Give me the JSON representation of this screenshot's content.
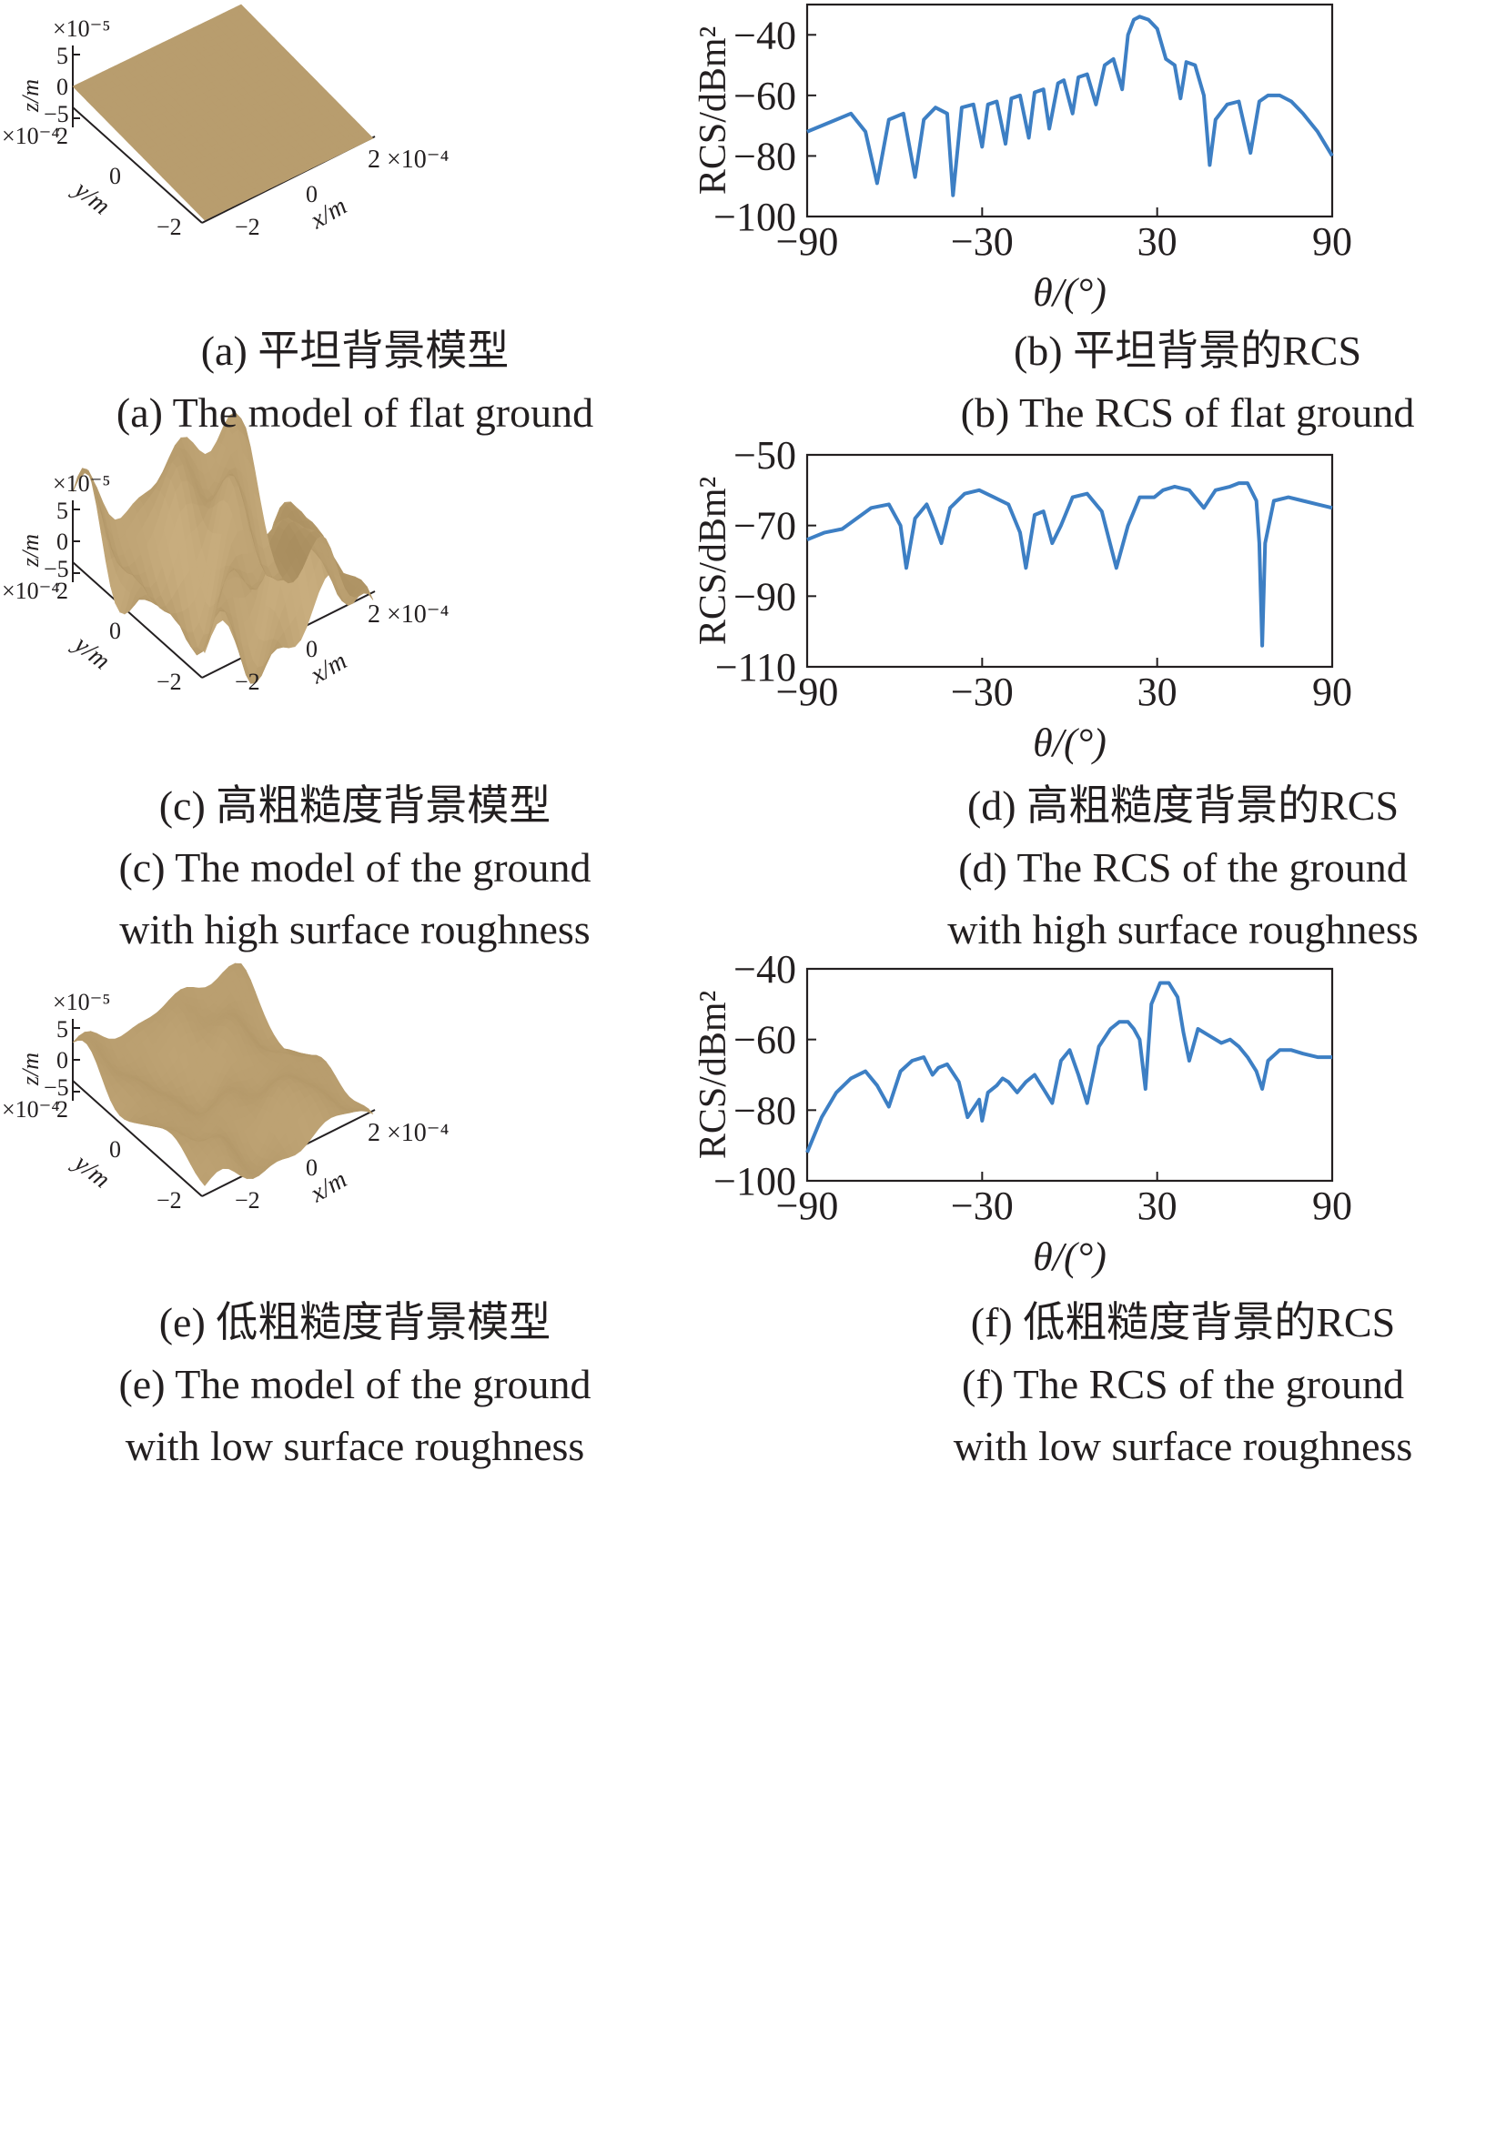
{
  "colors": {
    "surface": "#b89d6e",
    "surface_dark": "#9c8156",
    "line": "#3d7fc4",
    "axis": "#231f20"
  },
  "surface_panels": [
    {
      "id": "a",
      "roughness": 0.0,
      "z_exp": "×10⁻⁵",
      "z_label": "z/m",
      "y_exp": "×10⁻⁴",
      "y_label": "y/m",
      "x_exp": "2 ×10⁻⁴",
      "x_label": "x/m",
      "z_ticks": [
        "5",
        "0",
        "−5"
      ],
      "y_ticks": [
        "2",
        "0",
        "−2"
      ],
      "x_ticks": [
        "−2",
        "0"
      ]
    },
    {
      "id": "c",
      "roughness": 1.0,
      "z_exp": "×10⁻⁵",
      "z_label": "z/m",
      "y_exp": "×10⁻⁴",
      "y_label": "y/m",
      "x_exp": "2 ×10⁻⁴",
      "x_label": "x/m",
      "z_ticks": [
        "5",
        "0",
        "−5"
      ],
      "y_ticks": [
        "2",
        "0",
        "−2"
      ],
      "x_ticks": [
        "−2",
        "0"
      ]
    },
    {
      "id": "e",
      "roughness": 0.35,
      "z_exp": "×10⁻⁵",
      "z_label": "z/m",
      "y_exp": "×10⁻⁴",
      "y_label": "y/m",
      "x_exp": "2 ×10⁻⁴",
      "x_label": "x/m",
      "z_ticks": [
        "5",
        "0",
        "−5"
      ],
      "y_ticks": [
        "2",
        "0",
        "−2"
      ],
      "x_ticks": [
        "−2",
        "0"
      ]
    }
  ],
  "chart_data": [
    {
      "type": "line",
      "xlabel": "θ/(°)",
      "ylabel": "RCS/dBm²",
      "xlim": [
        -90,
        90
      ],
      "ylim": [
        -100,
        -30
      ],
      "xticks": [
        "−90",
        "−30",
        "30",
        "90"
      ],
      "xtick_values": [
        -90,
        -30,
        30,
        90
      ],
      "yticks": [
        "−40",
        "−60",
        "−80",
        "−100"
      ],
      "ytick_values": [
        -40,
        -60,
        -80,
        -100
      ],
      "x": [
        -90,
        -80,
        -75,
        -70,
        -66,
        -62,
        -57,
        -53,
        -50,
        -46,
        -42,
        -40,
        -37,
        -33,
        -30,
        -28,
        -25,
        -22,
        -20,
        -17,
        -14,
        -12,
        -9,
        -7,
        -4,
        -2,
        1,
        3,
        6,
        9,
        12,
        15,
        18,
        20,
        22,
        24,
        27,
        30,
        33,
        36,
        38,
        40,
        43,
        46,
        48,
        50,
        54,
        58,
        62,
        65,
        68,
        72,
        76,
        80,
        85,
        90
      ],
      "y": [
        -72,
        -68,
        -66,
        -72,
        -89,
        -68,
        -66,
        -87,
        -68,
        -64,
        -66,
        -93,
        -64,
        -63,
        -77,
        -63,
        -62,
        -76,
        -61,
        -60,
        -74,
        -59,
        -58,
        -71,
        -56,
        -55,
        -66,
        -54,
        -53,
        -63,
        -50,
        -48,
        -58,
        -40,
        -35,
        -34,
        -35,
        -38,
        -48,
        -50,
        -61,
        -49,
        -50,
        -60,
        -83,
        -68,
        -63,
        -62,
        -79,
        -62,
        -60,
        -60,
        -62,
        -66,
        -72,
        -80
      ]
    },
    {
      "type": "line",
      "xlabel": "θ/(°)",
      "ylabel": "RCS/dBm²",
      "xlim": [
        -90,
        90
      ],
      "ylim": [
        -110,
        -50
      ],
      "xticks": [
        "−90",
        "−30",
        "30",
        "90"
      ],
      "xtick_values": [
        -90,
        -30,
        30,
        90
      ],
      "yticks": [
        "−50",
        "−70",
        "−90",
        "−110"
      ],
      "ytick_values": [
        -50,
        -70,
        -90,
        -110
      ],
      "x": [
        -90,
        -84,
        -78,
        -73,
        -68,
        -62,
        -58,
        -56,
        -53,
        -49,
        -47,
        -44,
        -41,
        -36,
        -31,
        -26,
        -21,
        -17,
        -15,
        -12,
        -9,
        -6,
        -3,
        1,
        6,
        11,
        16,
        20,
        24,
        26,
        29,
        32,
        36,
        41,
        46,
        50,
        55,
        58,
        61,
        64,
        65,
        66,
        67,
        70,
        75,
        80,
        85,
        90
      ],
      "y": [
        -74,
        -72,
        -71,
        -68,
        -65,
        -64,
        -70,
        -82,
        -68,
        -64,
        -68,
        -75,
        -65,
        -61,
        -60,
        -62,
        -64,
        -72,
        -82,
        -67,
        -66,
        -75,
        -70,
        -62,
        -61,
        -66,
        -82,
        -70,
        -62,
        -62,
        -62,
        -60,
        -59,
        -60,
        -65,
        -60,
        -59,
        -58,
        -58,
        -63,
        -75,
        -104,
        -75,
        -63,
        -62,
        -63,
        -64,
        -65
      ]
    },
    {
      "type": "line",
      "xlabel": "θ/(°)",
      "ylabel": "RCS/dBm²",
      "xlim": [
        -90,
        90
      ],
      "ylim": [
        -100,
        -40
      ],
      "xticks": [
        "−90",
        "−30",
        "30",
        "90"
      ],
      "xtick_values": [
        -90,
        -30,
        30,
        90
      ],
      "yticks": [
        "−40",
        "−60",
        "−80",
        "−100"
      ],
      "ytick_values": [
        -40,
        -60,
        -80,
        -100
      ],
      "x": [
        -90,
        -85,
        -80,
        -75,
        -70,
        -66,
        -62,
        -58,
        -54,
        -50,
        -47,
        -45,
        -42,
        -38,
        -35,
        -31,
        -30,
        -28,
        -25,
        -23,
        -21,
        -18,
        -15,
        -12,
        -9,
        -6,
        -3,
        0,
        3,
        6,
        10,
        14,
        17,
        20,
        22,
        24,
        26,
        28,
        31,
        34,
        37,
        39,
        41,
        44,
        48,
        52,
        55,
        58,
        61,
        64,
        66,
        68,
        72,
        76,
        80,
        85,
        90
      ],
      "y": [
        -92,
        -82,
        -75,
        -71,
        -69,
        -73,
        -79,
        -69,
        -66,
        -65,
        -70,
        -68,
        -67,
        -72,
        -82,
        -77,
        -83,
        -75,
        -73,
        -71,
        -72,
        -75,
        -72,
        -70,
        -74,
        -78,
        -66,
        -63,
        -70,
        -78,
        -62,
        -57,
        -55,
        -55,
        -57,
        -60,
        -74,
        -50,
        -44,
        -44,
        -48,
        -58,
        -66,
        -57,
        -59,
        -61,
        -60,
        -62,
        -65,
        -69,
        -74,
        -66,
        -63,
        -63,
        -64,
        -65,
        -65
      ]
    }
  ],
  "captions": [
    {
      "cn": "(a) 平坦背景模型",
      "en": [
        "(a) The model of flat ground"
      ]
    },
    {
      "cn": "(b) 平坦背景的RCS",
      "en": [
        "(b) The RCS of flat ground"
      ]
    },
    {
      "cn": "(c) 高粗糙度背景模型",
      "en": [
        "(c) The model of the ground",
        "with high surface roughness"
      ]
    },
    {
      "cn": "(d) 高粗糙度背景的RCS",
      "en": [
        "(d) The RCS of the ground",
        "with high surface roughness"
      ]
    },
    {
      "cn": "(e) 低粗糙度背景模型",
      "en": [
        "(e) The model of the ground",
        "with low surface roughness"
      ]
    },
    {
      "cn": "(f) 低粗糙度背景的RCS",
      "en": [
        "(f) The RCS of the ground",
        "with low surface roughness"
      ]
    }
  ]
}
